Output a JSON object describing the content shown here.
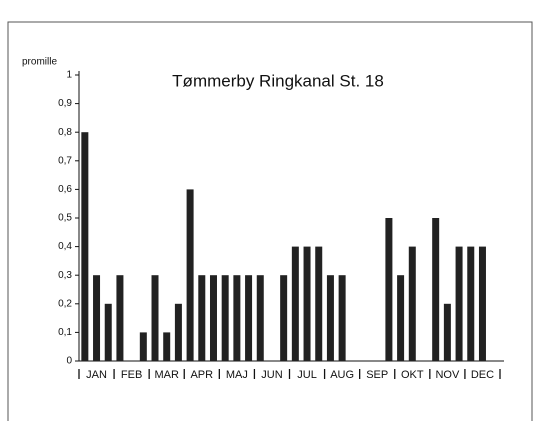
{
  "chart_data": {
    "type": "bar",
    "title": "Tømmerby Ringkanal St. 18",
    "y_label": "promille",
    "categories": [
      null,
      "JAN",
      null,
      null,
      "FEB",
      null,
      null,
      "MAR",
      null,
      null,
      "APR",
      null,
      null,
      "MAJ",
      null,
      null,
      "JUN",
      null,
      null,
      "JUL",
      null,
      null,
      "AUG",
      null,
      null,
      "SEP",
      null,
      null,
      "OKT",
      null,
      null,
      "NOV",
      null,
      null,
      "DEC",
      null
    ],
    "values": [
      0.8,
      0.3,
      0.2,
      0.3,
      null,
      0.1,
      0.3,
      0.1,
      0.2,
      0.6,
      0.3,
      0.3,
      0.3,
      0.3,
      0.3,
      0.3,
      null,
      0.3,
      0.4,
      0.4,
      0.4,
      0.3,
      0.3,
      null,
      null,
      null,
      0.5,
      0.3,
      0.4,
      null,
      0.5,
      0.2,
      0.4,
      0.4,
      0.4,
      null
    ],
    "color": "#222222",
    "ylim": [
      0,
      1
    ],
    "yticks": [
      0,
      {
        "value": 0.1,
        "label": "0,1"
      },
      {
        "value": 0.2,
        "label": "0,2"
      },
      {
        "value": 0.3,
        "label": "0,3"
      },
      {
        "value": 0.4,
        "label": "0,4"
      },
      {
        "value": 0.5,
        "label": "0,5"
      },
      {
        "value": 0.6,
        "label": "0,6"
      },
      {
        "value": 0.7,
        "label": "0,7"
      },
      {
        "value": 0.8,
        "label": "0,8"
      },
      {
        "value": 0.9,
        "label": "0,9"
      },
      1
    ],
    "grid": false
  }
}
